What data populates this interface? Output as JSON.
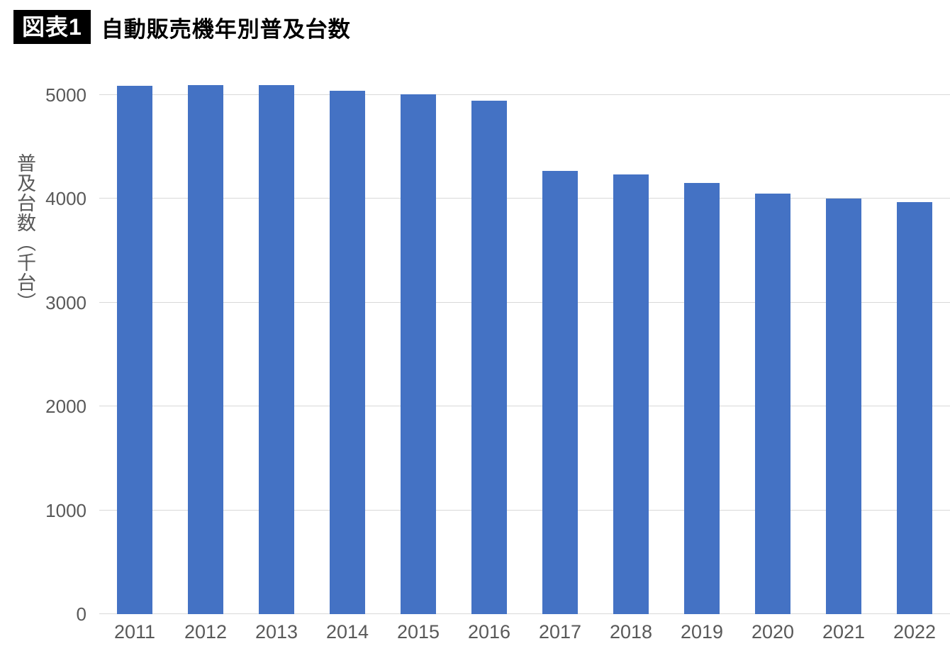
{
  "header": {
    "badge": "図表1",
    "title": "自動販売機年別普及台数"
  },
  "chart_data": {
    "type": "bar",
    "title": "自動販売機年別普及台数",
    "categories": [
      "2011",
      "2012",
      "2013",
      "2014",
      "2015",
      "2016",
      "2017",
      "2018",
      "2019",
      "2020",
      "2021",
      "2022"
    ],
    "values": [
      5084,
      5093,
      5094,
      5036,
      5002,
      4941,
      4271,
      4235,
      4149,
      4046,
      4004,
      3970
    ],
    "xlabel": "",
    "ylabel": "普及台数（千台）",
    "yticks": [
      0,
      1000,
      2000,
      3000,
      4000,
      5000
    ],
    "ylim": [
      0,
      5230
    ],
    "grid": true,
    "legend": false,
    "colors": {
      "bar": "#4472C4",
      "gridline": "#D9D9D9",
      "tick_label": "#595959",
      "axis_title": "#595959",
      "title_text": "#000000",
      "badge_background": "#000000",
      "badge_text": "#FFFFFF",
      "background": "#FFFFFF"
    }
  }
}
